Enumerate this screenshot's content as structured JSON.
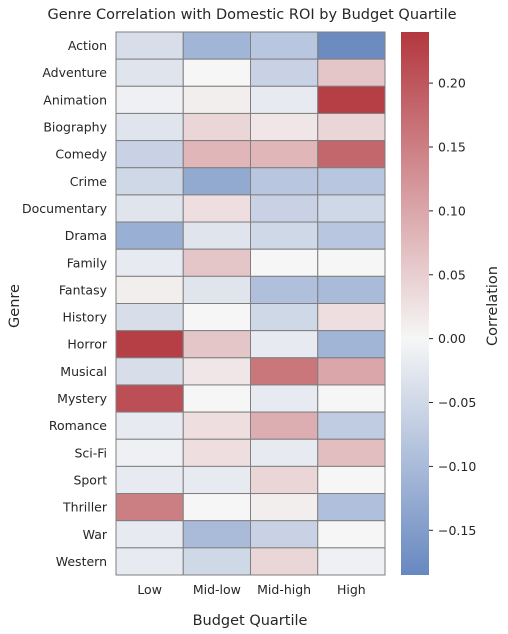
{
  "chart_data": {
    "type": "heatmap",
    "title": "Genre Correlation with Domestic ROI by Budget Quartile",
    "xlabel": "Budget Quartile",
    "ylabel": "Genre",
    "colorbar_label": "Correlation",
    "x_categories": [
      "Low",
      "Mid-low",
      "Mid-high",
      "High"
    ],
    "y_categories": [
      "Action",
      "Adventure",
      "Animation",
      "Biography",
      "Comedy",
      "Crime",
      "Documentary",
      "Drama",
      "Family",
      "Fantasy",
      "History",
      "Horror",
      "Musical",
      "Mystery",
      "Romance",
      "Sci-Fi",
      "Sport",
      "Thriller",
      "War",
      "Western"
    ],
    "values": [
      [
        -0.04,
        -0.11,
        -0.08,
        -0.18
      ],
      [
        -0.03,
        0.0,
        -0.06,
        0.06
      ],
      [
        -0.01,
        0.01,
        -0.02,
        0.23
      ],
      [
        -0.03,
        0.04,
        0.02,
        0.04
      ],
      [
        -0.06,
        0.08,
        0.08,
        0.18
      ],
      [
        -0.05,
        -0.13,
        -0.08,
        -0.08
      ],
      [
        -0.03,
        0.03,
        -0.06,
        -0.05
      ],
      [
        -0.12,
        -0.03,
        -0.05,
        -0.08
      ],
      [
        -0.02,
        0.06,
        0.0,
        0.0
      ],
      [
        0.01,
        -0.03,
        -0.09,
        -0.1
      ],
      [
        -0.04,
        0.0,
        -0.05,
        0.03
      ],
      [
        0.23,
        0.06,
        -0.02,
        -0.11
      ],
      [
        -0.04,
        0.02,
        0.16,
        0.1
      ],
      [
        0.21,
        0.0,
        -0.02,
        0.0
      ],
      [
        -0.02,
        0.03,
        0.09,
        -0.07
      ],
      [
        -0.01,
        0.03,
        -0.02,
        0.07
      ],
      [
        -0.02,
        -0.02,
        0.04,
        0.0
      ],
      [
        0.15,
        0.0,
        0.01,
        -0.09
      ],
      [
        -0.02,
        -0.1,
        -0.06,
        0.0
      ],
      [
        -0.02,
        -0.05,
        0.04,
        -0.01
      ]
    ],
    "vmin": -0.185,
    "vmax": 0.24,
    "colorbar_ticks": [
      0.2,
      0.15,
      0.1,
      0.05,
      0.0,
      -0.05,
      -0.1,
      -0.15
    ],
    "colorbar_tick_labels": [
      "0.20",
      "0.15",
      "0.10",
      "0.05",
      "0.00",
      "−0.05",
      "−0.10",
      "−0.15"
    ],
    "colormap": {
      "negative": "#6788c0",
      "center": "#f6f6f6",
      "positive": "#b3373e"
    },
    "grid_line_color": "#7f7f7f"
  }
}
